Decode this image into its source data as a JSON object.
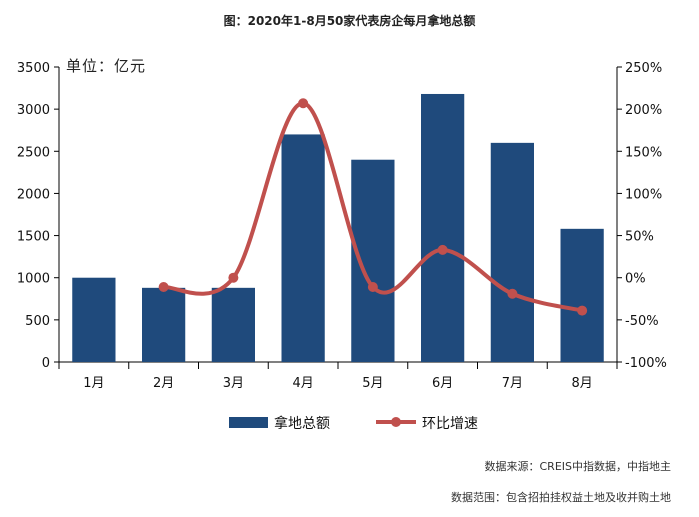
{
  "title": "图：2020年1-8月50家代表房企每月拿地总额",
  "unit_label": "单位：亿元",
  "source_line1": "数据来源：CREIS中指数据，中指地主",
  "source_line2": "数据范围：包含招拍挂权益土地及收并购土地",
  "colors": {
    "bar": "#1F4A7C",
    "line": "#C0504D",
    "axis": "#000000"
  },
  "chart_data": {
    "type": "bar",
    "categories": [
      "1月",
      "2月",
      "3月",
      "4月",
      "5月",
      "6月",
      "7月",
      "8月"
    ],
    "series": [
      {
        "name": "拿地总额",
        "type": "bar",
        "axis": "left",
        "values": [
          1000,
          880,
          880,
          2700,
          2400,
          3180,
          2600,
          1580
        ]
      },
      {
        "name": "环比增速",
        "type": "line",
        "axis": "right",
        "values": [
          null,
          -0.11,
          0.0,
          2.07,
          -0.11,
          0.33,
          -0.19,
          -0.39
        ]
      }
    ],
    "ylim_left": [
      0,
      3500
    ],
    "yticks_left": [
      "0",
      "500",
      "1000",
      "1500",
      "2000",
      "2500",
      "3000",
      "3500"
    ],
    "ylim_right": [
      -1.0,
      2.5
    ],
    "yticks_right": [
      "-100%",
      "-50%",
      "0%",
      "50%",
      "100%",
      "150%",
      "200%",
      "250%"
    ],
    "grid": false,
    "legend_position": "bottom"
  }
}
